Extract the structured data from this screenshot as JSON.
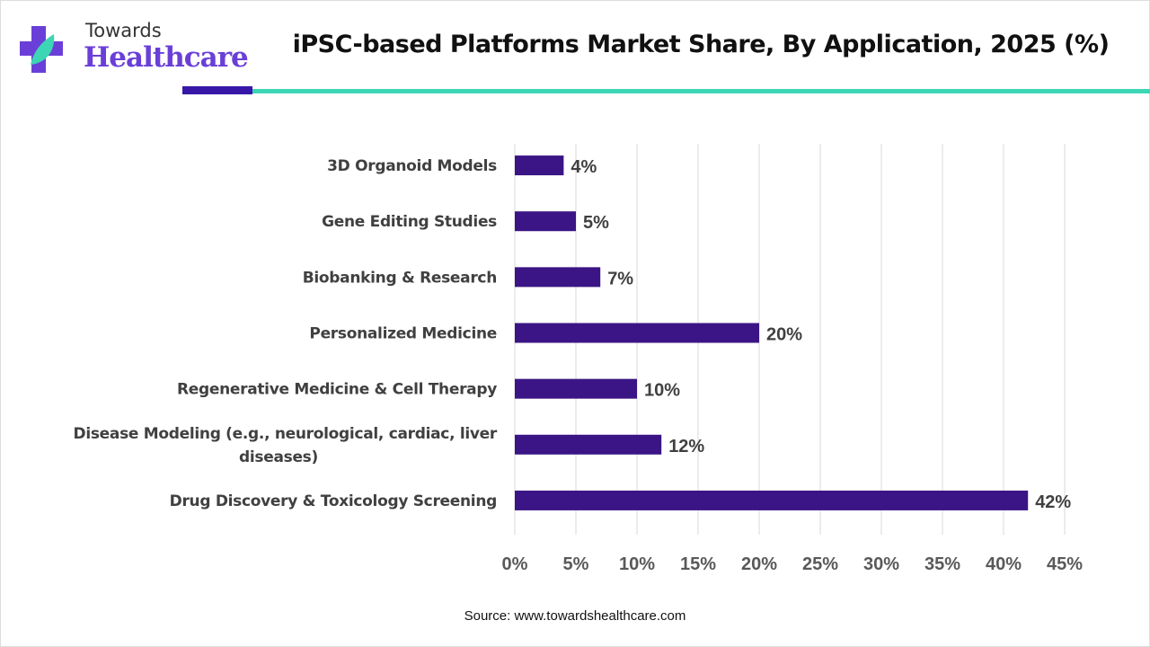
{
  "brand": {
    "line1": "Towards",
    "line2": "Healthcare"
  },
  "source": "Source: www.towardshealthcare.com",
  "colors": {
    "bar": "#3b1585",
    "accent_dark": "#3617a8",
    "accent_teal": "#3dd6b5"
  },
  "chart_data": {
    "type": "bar",
    "orientation": "horizontal",
    "title": "iPSC-based Platforms Market Share, By Application, 2025 (%)",
    "categories": [
      [
        "3D Organoid Models"
      ],
      [
        "Gene Editing Studies"
      ],
      [
        "Biobanking & Research"
      ],
      [
        "Personalized Medicine"
      ],
      [
        "Regenerative Medicine & Cell Therapy"
      ],
      [
        "Disease Modeling (e.g., neurological, cardiac, liver",
        "diseases)"
      ],
      [
        "Drug Discovery & Toxicology Screening"
      ]
    ],
    "values": [
      4,
      5,
      7,
      20,
      10,
      12,
      42
    ],
    "data_labels": [
      "4%",
      "5%",
      "7%",
      "20%",
      "10%",
      "12%",
      "42%"
    ],
    "xlim": [
      0,
      45
    ],
    "xticks": [
      "0%",
      "5%",
      "10%",
      "15%",
      "20%",
      "25%",
      "30%",
      "35%",
      "40%",
      "45%"
    ],
    "xlabel": "",
    "ylabel": "",
    "grid": true,
    "legend": "none"
  }
}
